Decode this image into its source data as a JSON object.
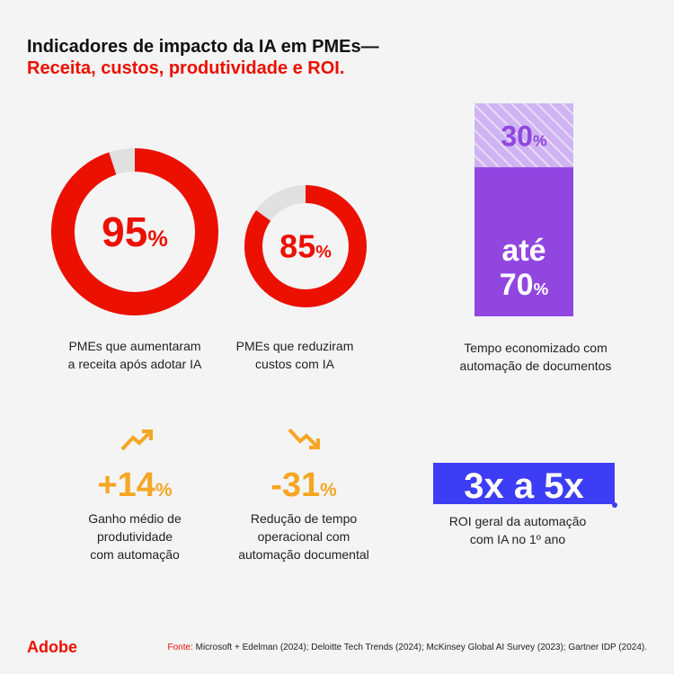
{
  "header": {
    "title_line1": "Indicadores de impacto da IA em PMEs—",
    "title_line2": "Receita, custos, produtividade e ROI."
  },
  "stats": {
    "revenue": {
      "value": 95,
      "unit": "%",
      "caption": [
        "PMEs que aumentaram",
        "a receita após adotar IA"
      ],
      "color": "#eb1000",
      "track": "#e0e0e0"
    },
    "costs": {
      "value": 85,
      "unit": "%",
      "caption": [
        "PMEs que reduziram",
        "custos com IA"
      ],
      "color": "#eb1000",
      "track": "#e0e0e0"
    },
    "time": {
      "top": {
        "value": 30,
        "unit": "%"
      },
      "bottom": {
        "prefix": "até",
        "value": 70,
        "unit": "%"
      },
      "caption": [
        "Tempo economizado com",
        "automação de documentos"
      ],
      "color": "#9146e0",
      "light": "#d9c3f5"
    },
    "productivity": {
      "figure": "+14",
      "unit": "%",
      "caption": [
        "Ganho médio de",
        "produtividade",
        "com automação"
      ],
      "color": "#f5a623"
    },
    "reduction": {
      "figure": "-31",
      "unit": "%",
      "caption": [
        "Redução de tempo",
        "operacional com",
        "automação documental"
      ],
      "color": "#f5a623"
    },
    "roi": {
      "figure": "3x a 5x",
      "caption": [
        "ROI geral da automação",
        "com IA no 1º ano"
      ],
      "color": "#3d3df5"
    }
  },
  "footer": {
    "logo": "Adobe",
    "source_label": "Fonte:",
    "source": "Microsoft + Edelman (2024); Deloitte Tech Trends (2024); McKinsey Global AI Survey (2023); Gartner IDP (2024)."
  }
}
